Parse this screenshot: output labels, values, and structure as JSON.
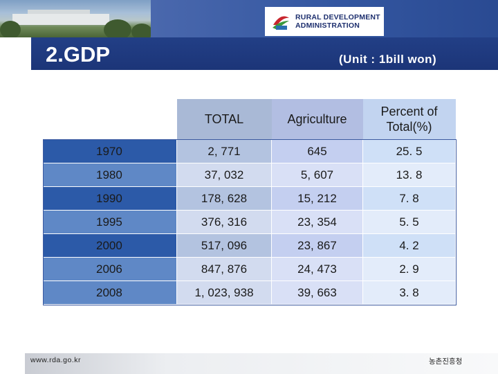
{
  "header": {
    "logo_line1": "RURAL DEVELOPMENT",
    "logo_line2": "ADMINISTRATION"
  },
  "title": "2.GDP",
  "unit": "(Unit : 1bill won)",
  "table": {
    "columns": [
      "TOTAL",
      "Agriculture",
      "Percent of Total(%)"
    ],
    "rows": [
      {
        "year": "1970",
        "total": "2, 771",
        "agriculture": "645",
        "percent": "25. 5"
      },
      {
        "year": "1980",
        "total": "37, 032",
        "agriculture": "5, 607",
        "percent": "13. 8"
      },
      {
        "year": "1990",
        "total": "178, 628",
        "agriculture": "15, 212",
        "percent": "7. 8"
      },
      {
        "year": "1995",
        "total": "376, 316",
        "agriculture": "23, 354",
        "percent": "5. 5"
      },
      {
        "year": "2000",
        "total": "517, 096",
        "agriculture": "23, 867",
        "percent": "4. 2"
      },
      {
        "year": "2006",
        "total": "847, 876",
        "agriculture": "24, 473",
        "percent": "2. 9"
      },
      {
        "year": "2008",
        "total": "1, 023, 938",
        "agriculture": "39, 663",
        "percent": "3. 8"
      }
    ]
  },
  "footer": {
    "url": "www.rda.go.kr",
    "org_korean": "농촌진흥청"
  },
  "colors": {
    "navy": "#1c3578",
    "row_dark": "#2c5aa8",
    "row_light": "#5f88c6"
  }
}
